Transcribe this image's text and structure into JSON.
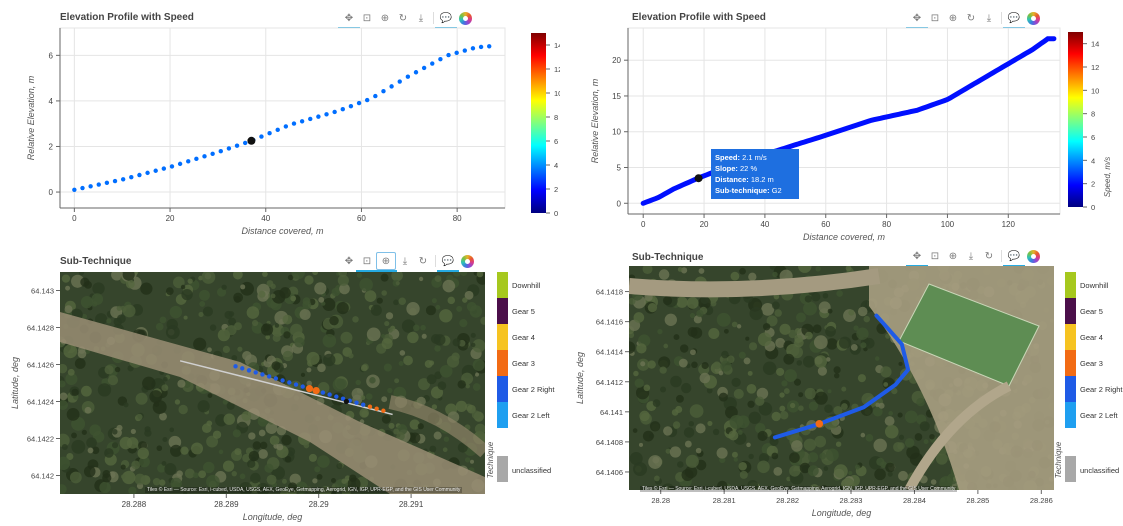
{
  "toolbar_icons": [
    "pan-icon",
    "box-zoom-icon",
    "wheel-zoom-icon",
    "reset-icon",
    "save-icon",
    "hover-icon",
    "bokeh-logo-icon"
  ],
  "colorbar": {
    "label": "Speed, m/s",
    "ticks": [
      0,
      2,
      4,
      6,
      8,
      10,
      12,
      14
    ],
    "range": [
      0,
      15
    ],
    "colormap": [
      "#00007f",
      "#0000ff",
      "#007fff",
      "#00ffff",
      "#7fff7f",
      "#ffff00",
      "#ff7f00",
      "#ff0000",
      "#7f0000"
    ]
  },
  "technique_legend": {
    "title": "Technique",
    "items": [
      {
        "label": "Downhill",
        "color": "#a6c81e"
      },
      {
        "label": "Gear 5",
        "color": "#4b0f4a"
      },
      {
        "label": "Gear 4",
        "color": "#f6c321"
      },
      {
        "label": "Gear 3",
        "color": "#f26b14"
      },
      {
        "label": "Gear 2 Right",
        "color": "#1f5be6"
      },
      {
        "label": "Gear 2 Left",
        "color": "#1f9ff0"
      }
    ],
    "unclassified": {
      "label": "unclassified",
      "color": "#a8a8a8"
    }
  },
  "map_attribution": "Tiles © Esri — Source: Esri, i-cubed, USDA, USGS, AEX, GeoEye, Getmapping, Aerogrid, IGN, IGP, UPR-EGP, and the GIS User Community",
  "chart_data": [
    {
      "type": "scatter",
      "title": "Elevation Profile with Speed",
      "xlabel": "Distance covered, m",
      "ylabel": "Relative Elevation, m",
      "xlim": [
        -3,
        90
      ],
      "ylim": [
        -0.7,
        7.2
      ],
      "xticks": [
        0,
        20,
        40,
        60,
        80
      ],
      "yticks": [
        0,
        2,
        4,
        6
      ],
      "grid": true,
      "colorbar": "Speed, m/s",
      "series": [
        {
          "x": [
            0,
            10,
            20,
            30,
            37,
            45,
            55,
            62,
            70,
            78,
            84,
            88
          ],
          "y": [
            0.1,
            0.55,
            1.1,
            1.75,
            2.25,
            2.95,
            3.55,
            4.1,
            5.1,
            6.0,
            6.35,
            6.42
          ],
          "speed": 3.5
        }
      ],
      "highlight": {
        "x": 37,
        "y": 2.25
      }
    },
    {
      "type": "line",
      "title": "Elevation Profile with Speed",
      "xlabel": "Distance covered, m",
      "ylabel": "Relative Elevation, m",
      "xlim": [
        -5,
        137
      ],
      "ylim": [
        -1.5,
        24.5
      ],
      "xticks": [
        0,
        20,
        40,
        60,
        80,
        100,
        120
      ],
      "yticks": [
        0,
        5,
        10,
        15,
        20
      ],
      "grid": true,
      "colorbar": "Speed, m/s",
      "series": [
        {
          "x": [
            0,
            5,
            10,
            18,
            30,
            45,
            60,
            75,
            90,
            100,
            110,
            120,
            128,
            133,
            135
          ],
          "y": [
            0,
            0.8,
            2,
            3.5,
            5.5,
            7.5,
            9.5,
            11.6,
            13,
            14.5,
            17,
            19.5,
            21.5,
            23,
            23
          ],
          "speed": 2.1
        }
      ],
      "highlight": {
        "x": 18.2,
        "y": 3.5
      },
      "tooltip": [
        {
          "label": "Speed:",
          "value": "2.1 m/s"
        },
        {
          "label": "Slope:",
          "value": "22 %"
        },
        {
          "label": "Distance:",
          "value": "18.2 m"
        },
        {
          "label": "Sub-technique:",
          "value": "G2"
        }
      ]
    },
    {
      "type": "scatter",
      "title": "Sub-Technique",
      "xlabel": "Longitude, deg",
      "ylabel": "Latitude, deg",
      "xlim": [
        28.2872,
        28.2918
      ],
      "ylim": [
        64.1419,
        64.1431
      ],
      "xticks": [
        "28.288",
        "28.289",
        "28.29",
        "28.291"
      ],
      "yticks": [
        "64.142",
        "64.1422",
        "64.1424",
        "64.1426",
        "64.1428",
        "64.143"
      ],
      "points": [
        {
          "x": 28.2891,
          "y": 64.14259,
          "technique": "Gear 2 Left"
        },
        {
          "x": 28.2894,
          "y": 64.14255,
          "technique": "Gear 2 Right"
        },
        {
          "x": 28.2897,
          "y": 64.1425,
          "technique": "Gear 2 Right"
        },
        {
          "x": 28.29,
          "y": 64.14246,
          "technique": "Gear 2 Right"
        },
        {
          "x": 28.2903,
          "y": 64.14241,
          "technique": "Gear 2 Right"
        },
        {
          "x": 28.2906,
          "y": 64.14236,
          "technique": "Gear 3"
        }
      ]
    },
    {
      "type": "line",
      "title": "Sub-Technique",
      "xlabel": "Longitude, deg",
      "ylabel": "Latitude, deg",
      "xlim": [
        28.2795,
        28.2862
      ],
      "ylim": [
        64.14048,
        64.14197
      ],
      "xticks": [
        "28.28",
        "28.281",
        "28.282",
        "28.283",
        "28.284",
        "28.285",
        "28.286"
      ],
      "yticks": [
        "64.1406",
        "64.1408",
        "64.141",
        "64.1412",
        "64.1414",
        "64.1416",
        "64.1418"
      ],
      "track": {
        "x": [
          28.2818,
          28.2825,
          28.2832,
          28.2837,
          28.2839,
          28.2838,
          28.2834
        ],
        "y": [
          64.14083,
          64.14092,
          64.14103,
          64.14118,
          64.14128,
          64.14145,
          64.14164
        ],
        "technique": "Gear 2 Right"
      },
      "marker": {
        "x": 28.2825,
        "y": 64.14092,
        "technique": "Gear 3"
      }
    }
  ]
}
